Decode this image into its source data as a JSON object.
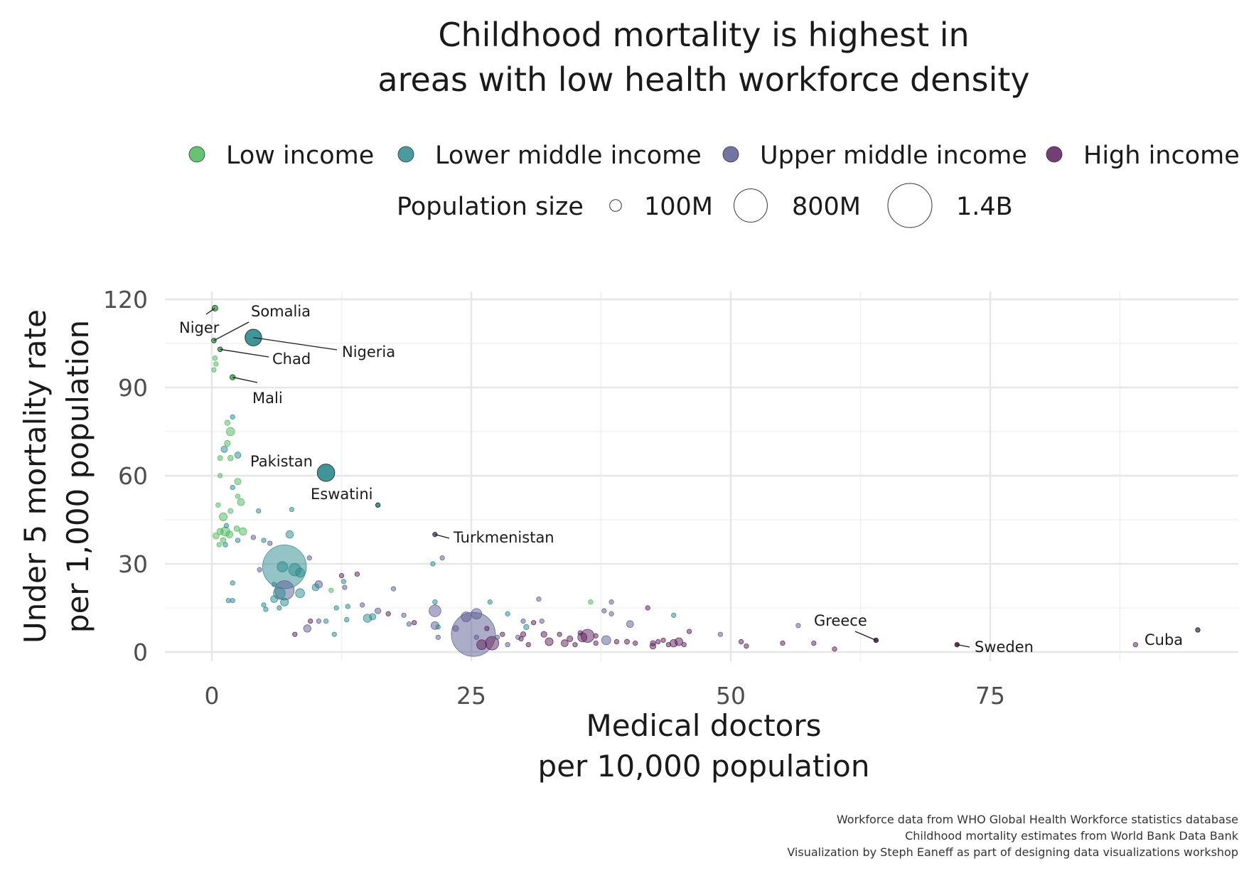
{
  "chart_data": {
    "type": "scatter",
    "title": [
      "Childhood mortality is highest in",
      "areas with low health workforce density"
    ],
    "xlabel": [
      "Medical doctors",
      "per 10,000 population"
    ],
    "ylabel": [
      "Under 5 mortality rate",
      "per 1,000 population"
    ],
    "xlim": [
      -7,
      99
    ],
    "ylim": [
      -8,
      124
    ],
    "x_ticks": [
      0,
      25,
      50,
      75
    ],
    "y_ticks": [
      0,
      30,
      60,
      90,
      120
    ],
    "grid": true,
    "legend_position": "top",
    "legend": {
      "groups": [
        {
          "name": "Low income",
          "color": "#4cb85c"
        },
        {
          "name": "Lower middle income",
          "color": "#2a8a8c"
        },
        {
          "name": "Upper middle income",
          "color": "#5a5c92"
        },
        {
          "name": "High income",
          "color": "#5b1f5a"
        }
      ],
      "size_title": "Population size",
      "size_levels": [
        {
          "label": "100M",
          "value": 100
        },
        {
          "label": "800M",
          "value": 800
        },
        {
          "label": "1.4B",
          "value": 1400
        }
      ]
    },
    "caption": [
      "Workforce data from WHO Global Health Workforce statistics database",
      "Childhood mortality estimates from World Bank Data Bank",
      "Visualization by Steph Eaneff as part of designing data visualizations workshop"
    ],
    "points": [
      {
        "x": 0.3,
        "y": 117,
        "g": 0,
        "p": 24,
        "label": "Niger"
      },
      {
        "x": 0.2,
        "y": 106,
        "g": 0,
        "p": 16,
        "label": "Somalia"
      },
      {
        "x": 4,
        "y": 107,
        "g": 1,
        "p": 200,
        "label": "Nigeria"
      },
      {
        "x": 0.8,
        "y": 103,
        "g": 0,
        "p": 16,
        "label": "Chad"
      },
      {
        "x": 2,
        "y": 93.5,
        "g": 0,
        "p": 20,
        "label": "Mali"
      },
      {
        "x": 11,
        "y": 61,
        "g": 1,
        "p": 220,
        "label": "Pakistan"
      },
      {
        "x": 16,
        "y": 50,
        "g": 1,
        "p": 1.2,
        "label": "Eswatini"
      },
      {
        "x": 21.5,
        "y": 40,
        "g": 2,
        "p": 6,
        "label": "Turkmenistan"
      },
      {
        "x": 64,
        "y": 4,
        "g": 3,
        "p": 10.5,
        "label": "Greece"
      },
      {
        "x": 71.8,
        "y": 2.5,
        "g": 3,
        "p": 10.4,
        "label": "Sweden"
      },
      {
        "x": 95,
        "y": 7.5,
        "g": 2,
        "p": 11.3,
        "label": "Cuba"
      },
      {
        "x": 0.2,
        "y": 96,
        "g": 0,
        "p": 10
      },
      {
        "x": 0.4,
        "y": 98,
        "g": 0,
        "p": 8
      },
      {
        "x": 0.3,
        "y": 100,
        "g": 0,
        "p": 6
      },
      {
        "x": 2,
        "y": 80,
        "g": 1,
        "p": 10
      },
      {
        "x": 1.5,
        "y": 78,
        "g": 0,
        "p": 20
      },
      {
        "x": 1.8,
        "y": 75,
        "g": 0,
        "p": 50
      },
      {
        "x": 1.5,
        "y": 71,
        "g": 0,
        "p": 25
      },
      {
        "x": 1.2,
        "y": 69,
        "g": 1,
        "p": 30
      },
      {
        "x": 0.8,
        "y": 66,
        "g": 0,
        "p": 18
      },
      {
        "x": 1.8,
        "y": 66,
        "g": 0,
        "p": 22
      },
      {
        "x": 2.5,
        "y": 67,
        "g": 1,
        "p": 28
      },
      {
        "x": 0.8,
        "y": 60,
        "g": 0,
        "p": 10
      },
      {
        "x": 2.5,
        "y": 58,
        "g": 0,
        "p": 30
      },
      {
        "x": 2,
        "y": 56,
        "g": 1,
        "p": 8
      },
      {
        "x": 2.5,
        "y": 53,
        "g": 0,
        "p": 14
      },
      {
        "x": 2.8,
        "y": 51,
        "g": 0,
        "p": 35
      },
      {
        "x": 0.6,
        "y": 50,
        "g": 0,
        "p": 12
      },
      {
        "x": 1.8,
        "y": 48,
        "g": 0,
        "p": 18
      },
      {
        "x": 1.1,
        "y": 46,
        "g": 0,
        "p": 45
      },
      {
        "x": 1.4,
        "y": 43,
        "g": 1,
        "p": 14
      },
      {
        "x": 0.8,
        "y": 41,
        "g": 0,
        "p": 30
      },
      {
        "x": 1.3,
        "y": 41,
        "g": 0,
        "p": 60
      },
      {
        "x": 1.7,
        "y": 40,
        "g": 0,
        "p": 35
      },
      {
        "x": 2.4,
        "y": 42,
        "g": 0,
        "p": 22
      },
      {
        "x": 3,
        "y": 41,
        "g": 0,
        "p": 40
      },
      {
        "x": 0.4,
        "y": 39.5,
        "g": 0,
        "p": 28
      },
      {
        "x": 1.1,
        "y": 38,
        "g": 0,
        "p": 22
      },
      {
        "x": 0.7,
        "y": 36.5,
        "g": 0,
        "p": 10
      },
      {
        "x": 1.3,
        "y": 36.5,
        "g": 1,
        "p": 14
      },
      {
        "x": 2.5,
        "y": 38,
        "g": 1,
        "p": 5
      },
      {
        "x": 4,
        "y": 39,
        "g": 2,
        "p": 5
      },
      {
        "x": 5,
        "y": 38,
        "g": 1,
        "p": 5
      },
      {
        "x": 5.6,
        "y": 37,
        "g": 2,
        "p": 3
      },
      {
        "x": 4.5,
        "y": 48,
        "g": 1,
        "p": 2
      },
      {
        "x": 7.7,
        "y": 48.5,
        "g": 1,
        "p": 2
      },
      {
        "x": 7.5,
        "y": 40,
        "g": 1,
        "p": 40
      },
      {
        "x": 7,
        "y": 29,
        "g": 1,
        "p": 1380
      },
      {
        "x": 6.8,
        "y": 29,
        "g": 1,
        "p": 80
      },
      {
        "x": 8,
        "y": 28,
        "g": 1,
        "p": 110
      },
      {
        "x": 8.5,
        "y": 27,
        "g": 1,
        "p": 60
      },
      {
        "x": 7,
        "y": 21,
        "g": 2,
        "p": 270
      },
      {
        "x": 6.5,
        "y": 20,
        "g": 1,
        "p": 100
      },
      {
        "x": 8.5,
        "y": 20,
        "g": 1,
        "p": 60
      },
      {
        "x": 6,
        "y": 18,
        "g": 1,
        "p": 35
      },
      {
        "x": 7,
        "y": 17,
        "g": 1,
        "p": 45
      },
      {
        "x": 6.5,
        "y": 15,
        "g": 1,
        "p": 8
      },
      {
        "x": 5,
        "y": 16,
        "g": 1,
        "p": 12
      },
      {
        "x": 5.2,
        "y": 14.5,
        "g": 1,
        "p": 8
      },
      {
        "x": 6,
        "y": 23,
        "g": 1,
        "p": 5
      },
      {
        "x": 4.6,
        "y": 28,
        "g": 2,
        "p": 3
      },
      {
        "x": 2,
        "y": 23.5,
        "g": 1,
        "p": 12
      },
      {
        "x": 1.6,
        "y": 17.5,
        "g": 1,
        "p": 5
      },
      {
        "x": 2,
        "y": 17.5,
        "g": 1,
        "p": 3
      },
      {
        "x": 9.4,
        "y": 32,
        "g": 2,
        "p": 2
      },
      {
        "x": 10,
        "y": 22,
        "g": 1,
        "p": 35
      },
      {
        "x": 10.3,
        "y": 23,
        "g": 2,
        "p": 40
      },
      {
        "x": 11.5,
        "y": 21,
        "g": 0,
        "p": 15
      },
      {
        "x": 12.5,
        "y": 26,
        "g": 3,
        "p": 3
      },
      {
        "x": 12.7,
        "y": 24,
        "g": 1,
        "p": 14
      },
      {
        "x": 12.8,
        "y": 22,
        "g": 2,
        "p": 14
      },
      {
        "x": 14,
        "y": 26.5,
        "g": 3,
        "p": 3
      },
      {
        "x": 9.2,
        "y": 8,
        "g": 2,
        "p": 40
      },
      {
        "x": 8,
        "y": 6,
        "g": 3,
        "p": 5
      },
      {
        "x": 9.5,
        "y": 10.5,
        "g": 3,
        "p": 3
      },
      {
        "x": 10.3,
        "y": 10.5,
        "g": 2,
        "p": 3
      },
      {
        "x": 11,
        "y": 10.5,
        "g": 1,
        "p": 4
      },
      {
        "x": 11.8,
        "y": 6,
        "g": 1,
        "p": 15
      },
      {
        "x": 13,
        "y": 11,
        "g": 1,
        "p": 8
      },
      {
        "x": 13.1,
        "y": 15.5,
        "g": 1,
        "p": 4
      },
      {
        "x": 12,
        "y": 15,
        "g": 1,
        "p": 3
      },
      {
        "x": 14.5,
        "y": 16,
        "g": 2,
        "p": 5
      },
      {
        "x": 15,
        "y": 11.5,
        "g": 1,
        "p": 50
      },
      {
        "x": 15.5,
        "y": 12,
        "g": 1,
        "p": 30
      },
      {
        "x": 16,
        "y": 14,
        "g": 2,
        "p": 25
      },
      {
        "x": 17,
        "y": 13,
        "g": 3,
        "p": 5
      },
      {
        "x": 17.5,
        "y": 21.5,
        "g": 2,
        "p": 2
      },
      {
        "x": 18.5,
        "y": 12.5,
        "g": 2,
        "p": 8
      },
      {
        "x": 19,
        "y": 9.5,
        "g": 2,
        "p": 8
      },
      {
        "x": 19.5,
        "y": 10,
        "g": 3,
        "p": 3
      },
      {
        "x": 21.3,
        "y": 30,
        "g": 1,
        "p": 14
      },
      {
        "x": 22.2,
        "y": 32,
        "g": 2,
        "p": 14
      },
      {
        "x": 21.5,
        "y": 17,
        "g": 1,
        "p": 16
      },
      {
        "x": 21.5,
        "y": 14,
        "g": 2,
        "p": 100
      },
      {
        "x": 21.5,
        "y": 9,
        "g": 2,
        "p": 45
      },
      {
        "x": 21.8,
        "y": 8.5,
        "g": 1,
        "p": 5
      },
      {
        "x": 21.8,
        "y": 5,
        "g": 2,
        "p": 5
      },
      {
        "x": 23.5,
        "y": 8,
        "g": 2,
        "p": 25
      },
      {
        "x": 24.5,
        "y": 12,
        "g": 2,
        "p": 70
      },
      {
        "x": 25.5,
        "y": 13,
        "g": 2,
        "p": 80
      },
      {
        "x": 25.2,
        "y": 6,
        "g": 2,
        "p": 1400
      },
      {
        "x": 25.5,
        "y": 5,
        "g": 2,
        "p": 10
      },
      {
        "x": 26,
        "y": 2.5,
        "g": 3,
        "p": 70
      },
      {
        "x": 26.5,
        "y": 8,
        "g": 3,
        "p": 10
      },
      {
        "x": 26.8,
        "y": 17,
        "g": 1,
        "p": 5
      },
      {
        "x": 27,
        "y": 3,
        "g": 3,
        "p": 130
      },
      {
        "x": 27.5,
        "y": 5,
        "g": 2,
        "p": 5
      },
      {
        "x": 28,
        "y": 6,
        "g": 3,
        "p": 3
      },
      {
        "x": 28.5,
        "y": 2.5,
        "g": 2,
        "p": 5
      },
      {
        "x": 28.5,
        "y": 13,
        "g": 1,
        "p": 15
      },
      {
        "x": 29.5,
        "y": 5,
        "g": 2,
        "p": 10
      },
      {
        "x": 29.8,
        "y": 4.5,
        "g": 3,
        "p": 8
      },
      {
        "x": 30,
        "y": 10.5,
        "g": 2,
        "p": 3
      },
      {
        "x": 30,
        "y": 6,
        "g": 3,
        "p": 20
      },
      {
        "x": 30.3,
        "y": 8.5,
        "g": 1,
        "p": 20
      },
      {
        "x": 31,
        "y": 10,
        "g": 3,
        "p": 3
      },
      {
        "x": 30.5,
        "y": 2.5,
        "g": 3,
        "p": 5
      },
      {
        "x": 31.5,
        "y": 18,
        "g": 2,
        "p": 8
      },
      {
        "x": 31.8,
        "y": 10.5,
        "g": 2,
        "p": 5
      },
      {
        "x": 32,
        "y": 6,
        "g": 3,
        "p": 25
      },
      {
        "x": 32.5,
        "y": 3.5,
        "g": 3,
        "p": 45
      },
      {
        "x": 33.5,
        "y": 6,
        "g": 3,
        "p": 10
      },
      {
        "x": 34,
        "y": 3,
        "g": 3,
        "p": 35
      },
      {
        "x": 34.5,
        "y": 4.5,
        "g": 3,
        "p": 25
      },
      {
        "x": 35,
        "y": 2.5,
        "g": 3,
        "p": 10
      },
      {
        "x": 35.5,
        "y": 6.5,
        "g": 3,
        "p": 10
      },
      {
        "x": 35.7,
        "y": 5,
        "g": 3,
        "p": 60
      },
      {
        "x": 36.2,
        "y": 5.5,
        "g": 3,
        "p": 125
      },
      {
        "x": 36.5,
        "y": 17,
        "g": 0,
        "p": 12
      },
      {
        "x": 37,
        "y": 3,
        "g": 3,
        "p": 10
      },
      {
        "x": 37,
        "y": 5.5,
        "g": 3,
        "p": 10
      },
      {
        "x": 37.8,
        "y": 14,
        "g": 2,
        "p": 3
      },
      {
        "x": 38,
        "y": 4,
        "g": 2,
        "p": 60
      },
      {
        "x": 38.5,
        "y": 17,
        "g": 2,
        "p": 5
      },
      {
        "x": 38.5,
        "y": 13,
        "g": 2,
        "p": 3
      },
      {
        "x": 39,
        "y": 3.5,
        "g": 3,
        "p": 10
      },
      {
        "x": 40,
        "y": 3.5,
        "g": 3,
        "p": 18
      },
      {
        "x": 40.3,
        "y": 9.5,
        "g": 2,
        "p": 35
      },
      {
        "x": 40.8,
        "y": 3,
        "g": 3,
        "p": 10
      },
      {
        "x": 42,
        "y": 15,
        "g": 3,
        "p": 3
      },
      {
        "x": 42.5,
        "y": 3,
        "g": 3,
        "p": 20
      },
      {
        "x": 42.5,
        "y": 2,
        "g": 3,
        "p": 25
      },
      {
        "x": 43,
        "y": 3.5,
        "g": 3,
        "p": 10
      },
      {
        "x": 43.5,
        "y": 4,
        "g": 3,
        "p": 5
      },
      {
        "x": 44,
        "y": 2.5,
        "g": 3,
        "p": 10
      },
      {
        "x": 44.5,
        "y": 12.5,
        "g": 1,
        "p": 3
      },
      {
        "x": 44.5,
        "y": 3,
        "g": 3,
        "p": 40
      },
      {
        "x": 45,
        "y": 3.5,
        "g": 3,
        "p": 45
      },
      {
        "x": 45.5,
        "y": 2.5,
        "g": 3,
        "p": 10
      },
      {
        "x": 46,
        "y": 7,
        "g": 3,
        "p": 5
      },
      {
        "x": 49,
        "y": 6,
        "g": 2,
        "p": 8
      },
      {
        "x": 51,
        "y": 3.5,
        "g": 3,
        "p": 8
      },
      {
        "x": 51.5,
        "y": 2,
        "g": 3,
        "p": 10
      },
      {
        "x": 55,
        "y": 3,
        "g": 3,
        "p": 10
      },
      {
        "x": 56.5,
        "y": 9,
        "g": 2,
        "p": 8
      },
      {
        "x": 58,
        "y": 3,
        "g": 3,
        "p": 10
      },
      {
        "x": 60,
        "y": 1,
        "g": 3,
        "p": 3
      },
      {
        "x": 89,
        "y": 2.5,
        "g": 3,
        "p": 3
      }
    ]
  }
}
